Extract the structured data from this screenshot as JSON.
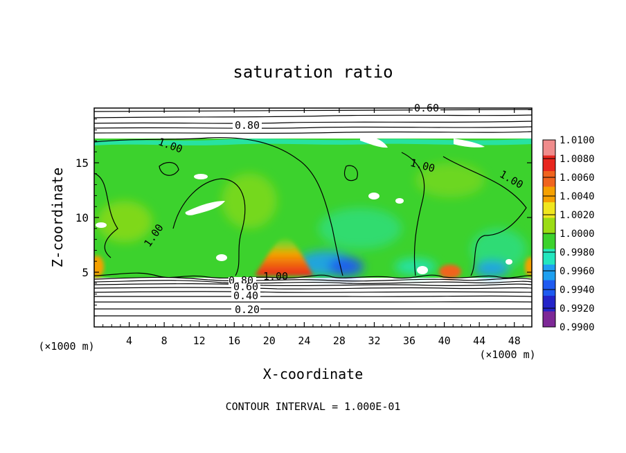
{
  "chart_data": {
    "type": "heatmap",
    "title": "saturation ratio",
    "xlabel": "X-coordinate",
    "ylabel": "Z-coordinate",
    "x_unit_label": "(×1000 m)",
    "y_unit_label": "(×1000 m)",
    "footer": "CONTOUR INTERVAL = 1.000E-01",
    "xlim": [
      0,
      50
    ],
    "ylim": [
      0,
      20
    ],
    "x_ticks": [
      4,
      8,
      12,
      16,
      20,
      24,
      28,
      32,
      36,
      40,
      44,
      48
    ],
    "y_ticks": [
      5,
      10,
      15
    ],
    "colorbar": {
      "levels": [
        "1.0100",
        "1.0080",
        "1.0060",
        "1.0040",
        "1.0020",
        "1.0000",
        "0.9980",
        "0.9960",
        "0.9940",
        "0.9920",
        "0.9900"
      ],
      "colors": [
        "#f08c8c",
        "#e8261e",
        "#f0641e",
        "#f5a000",
        "#f0e61e",
        "#9bdc14",
        "#3cd22d",
        "#23e6be",
        "#1ea0f0",
        "#1e5af0",
        "#2323c8",
        "#7d2896"
      ]
    },
    "contour_labels": [
      "0.60",
      "0.80",
      "1.00",
      "1.00",
      "1.00",
      "1.00",
      "1.00",
      "0.80",
      "0.60",
      "0.40",
      "0.20"
    ],
    "field_notes": {
      "saturated_layer_z": [
        4.6,
        17.2
      ],
      "subsaturated_below_z": 4.6,
      "subsaturated_above_z": 17.2,
      "supersaturation_peaks": [
        {
          "x": 22,
          "z": 5,
          "value": 1.007
        },
        {
          "x": 40.5,
          "z": 5,
          "value": 1.005
        },
        {
          "x": 1,
          "z": 5.3,
          "value": 1.004
        },
        {
          "x": 49,
          "z": 5.3,
          "value": 1.004
        }
      ],
      "subsaturation_minima": [
        {
          "x": 29,
          "z": 5,
          "value": 0.993
        },
        {
          "x": 45,
          "z": 5,
          "value": 0.9935
        }
      ]
    }
  }
}
